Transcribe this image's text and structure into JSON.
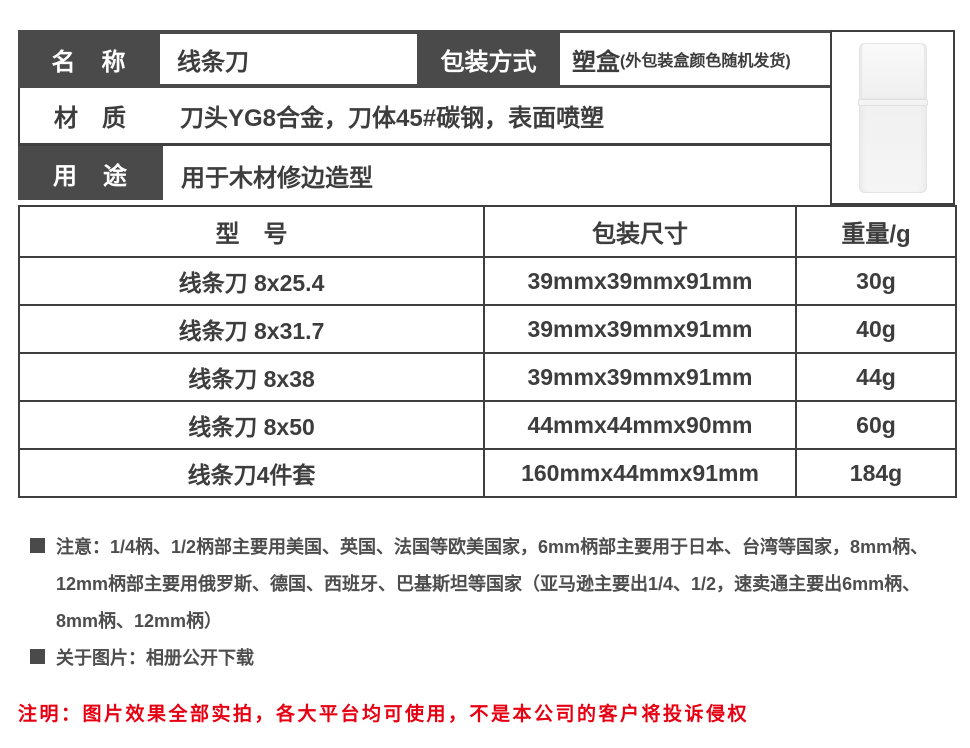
{
  "spec": {
    "name_label": "名　称",
    "name_value": "线条刀",
    "packaging_label": "包装方式",
    "packaging_value": "塑盒",
    "packaging_note": "(外包装盒颜色随机发货)",
    "material_label": "材　质",
    "material_value": "刀头YG8合金，刀体45#碳钢，表面喷塑",
    "usage_label": "用　途",
    "usage_value": "用于木材修边造型"
  },
  "model_table": {
    "headers": [
      "型　号",
      "包装尺寸",
      "重量/g"
    ],
    "rows": [
      [
        "线条刀 8x25.4",
        "39mmx39mmx91mm",
        "30g"
      ],
      [
        "线条刀 8x31.7",
        "39mmx39mmx91mm",
        "40g"
      ],
      [
        "线条刀 8x38",
        "39mmx39mmx91mm",
        "44g"
      ],
      [
        "线条刀 8x50",
        "44mmx44mmx90mm",
        "60g"
      ],
      [
        "线条刀4件套",
        "160mmx44mmx91mm",
        "184g"
      ]
    ]
  },
  "notes": {
    "attention_line1": "注意：1/4柄、1/2柄部主要用美国、英国、法国等欧美国家，6mm柄部主要用于日本、台湾等国家，8mm柄、",
    "attention_line2": "12mm柄部主要用俄罗斯、德国、西班牙、巴基斯坦等国家（亚马逊主要出1/4、1/2，速卖通主要出6mm柄、",
    "attention_line3": "8mm柄、12mm柄）",
    "about_images": "关于图片：相册公开下载",
    "legal_notice": "注明：图片效果全部实拍，各大平台均可使用，不是本公司的客户将投诉侵权"
  },
  "colors": {
    "header_dark": "#4a4a4a",
    "border": "#3f3f3f",
    "legal_red": "#e60012"
  }
}
